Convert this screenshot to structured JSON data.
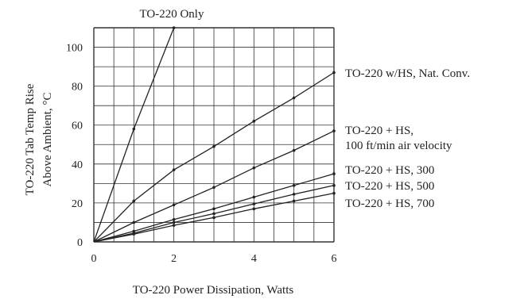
{
  "chart_data": {
    "type": "line",
    "xlabel": "TO-220 Power Dissipation, Watts",
    "ylabel_line1": "TO-220 Tab Temp Rise",
    "ylabel_line2": "Above Ambient, °C",
    "xlim": [
      0,
      6
    ],
    "ylim": [
      0,
      110
    ],
    "xticks": [
      0,
      2,
      4,
      6
    ],
    "yticks": [
      0,
      20,
      40,
      60,
      80,
      100
    ],
    "grid": true,
    "series": [
      {
        "name": "TO-220 Only",
        "x": [
          0,
          1,
          2
        ],
        "y": [
          0,
          58,
          110
        ]
      },
      {
        "name": "TO-220 w/HS, Nat. Conv.",
        "x": [
          0,
          1,
          2,
          3,
          4,
          5,
          6
        ],
        "y": [
          0,
          21,
          37,
          49,
          62,
          74,
          87
        ]
      },
      {
        "name": "TO-220 + HS, 100 ft/min air velocity",
        "x": [
          0,
          1,
          2,
          3,
          4,
          5,
          6
        ],
        "y": [
          0,
          10,
          19,
          28,
          38,
          47,
          57
        ]
      },
      {
        "name": "TO-220 + HS, 300",
        "x": [
          0,
          1,
          2,
          3,
          4,
          5,
          6
        ],
        "y": [
          0,
          5.5,
          11.5,
          17,
          23,
          29,
          35
        ]
      },
      {
        "name": "TO-220 + HS, 500",
        "x": [
          0,
          1,
          2,
          3,
          4,
          5,
          6
        ],
        "y": [
          0,
          4.5,
          10,
          14.5,
          19.5,
          24.5,
          29
        ]
      },
      {
        "name": "TO-220 + HS, 700",
        "x": [
          0,
          1,
          2,
          3,
          4,
          5,
          6
        ],
        "y": [
          0,
          4,
          8.5,
          12.5,
          17,
          21,
          25
        ]
      }
    ],
    "annotations": [
      {
        "series": 0,
        "lines": [
          "TO-220 Only"
        ]
      },
      {
        "series": 1,
        "lines": [
          "TO-220 w/HS, Nat. Conv."
        ]
      },
      {
        "series": 2,
        "lines": [
          "TO-220 + HS,",
          "100 ft/min air velocity"
        ]
      },
      {
        "series": 3,
        "lines": [
          "TO-220 + HS, 300"
        ]
      },
      {
        "series": 4,
        "lines": [
          "TO-220 + HS, 500"
        ]
      },
      {
        "series": 5,
        "lines": [
          "TO-220 + HS, 700"
        ]
      }
    ],
    "colors": {
      "line": "#222222",
      "grid": "#333333",
      "background": "#ffffff"
    }
  }
}
